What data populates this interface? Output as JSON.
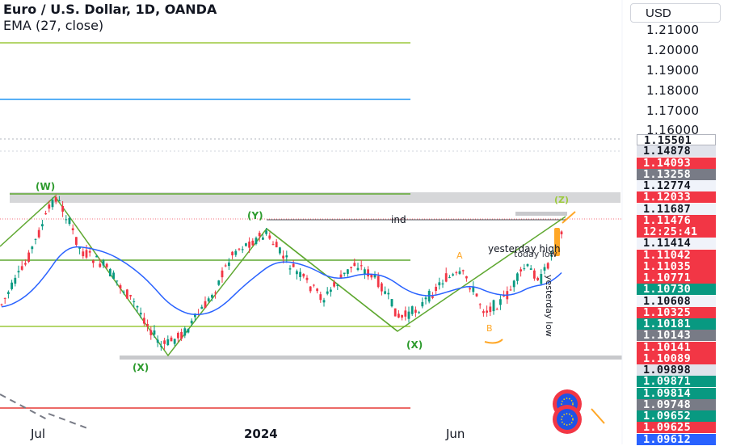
{
  "legend": {
    "title": "Euro / U.S. Dollar, 1D, OANDA",
    "indicator": "EMA (27, close)"
  },
  "currency_button": "USD",
  "price_axis": {
    "labels": [
      "1.21000",
      "1.20000",
      "1.19000",
      "1.18000",
      "1.17000",
      "1.16000"
    ]
  },
  "price_tags": [
    {
      "text": "1.15501",
      "bg": "#ffffff",
      "fg": "#131722",
      "border": "#b2b5be"
    },
    {
      "text": "1.14878",
      "bg": "#e0e3eb",
      "fg": "#131722"
    },
    {
      "text": "1.14093",
      "bg": "#f23645",
      "fg": "#ffffff"
    },
    {
      "text": "1.13258",
      "bg": "#787b86",
      "fg": "#ffffff"
    },
    {
      "text": "1.12774",
      "bg": "#f0f3fa",
      "fg": "#131722"
    },
    {
      "text": "1.12033",
      "bg": "#f23645",
      "fg": "#ffffff"
    },
    {
      "text": "1.11687",
      "bg": "#f0f3fa",
      "fg": "#131722"
    },
    {
      "text": "1.11476",
      "bg": "#f23645",
      "fg": "#ffffff"
    },
    {
      "text": "12:25:41",
      "bg": "#f23645",
      "fg": "#ffffff"
    },
    {
      "text": "1.11414",
      "bg": "#f0f3fa",
      "fg": "#131722"
    },
    {
      "text": "1.11042",
      "bg": "#f23645",
      "fg": "#ffffff"
    },
    {
      "text": "1.11035",
      "bg": "#f23645",
      "fg": "#ffffff"
    },
    {
      "text": "1.10771",
      "bg": "#f23645",
      "fg": "#ffffff"
    },
    {
      "text": "1.10730",
      "bg": "#089981",
      "fg": "#ffffff"
    },
    {
      "text": "1.10608",
      "bg": "#f0f3fa",
      "fg": "#131722"
    },
    {
      "text": "1.10325",
      "bg": "#f23645",
      "fg": "#ffffff"
    },
    {
      "text": "1.10181",
      "bg": "#089981",
      "fg": "#ffffff"
    },
    {
      "text": "1.10143",
      "bg": "#787b86",
      "fg": "#ffffff"
    },
    {
      "text": "1.10141",
      "bg": "#f23645",
      "fg": "#ffffff"
    },
    {
      "text": "1.10089",
      "bg": "#f23645",
      "fg": "#ffffff"
    },
    {
      "text": "1.09898",
      "bg": "#e0e3eb",
      "fg": "#131722"
    },
    {
      "text": "1.09871",
      "bg": "#089981",
      "fg": "#ffffff"
    },
    {
      "text": "1.09814",
      "bg": "#089981",
      "fg": "#ffffff"
    },
    {
      "text": "1.09748",
      "bg": "#787b86",
      "fg": "#ffffff"
    },
    {
      "text": "1.09652",
      "bg": "#089981",
      "fg": "#ffffff"
    },
    {
      "text": "1.09625",
      "bg": "#f23645",
      "fg": "#ffffff"
    },
    {
      "text": "1.09612",
      "bg": "#2962ff",
      "fg": "#ffffff"
    }
  ],
  "time_axis": {
    "labels": [
      "Jul",
      "2024",
      "Jun"
    ]
  },
  "annotations": {
    "wave_w": "(W)",
    "wave_x1": "(X)",
    "wave_y": "(Y)",
    "wave_x2": "(X)",
    "wave_z": "(Z)",
    "label_a": "A",
    "label_b": "B",
    "ind_label": "ind",
    "yesterday_high": "yesterday high",
    "yesterday_low": "yesterday low",
    "today_low": "today low"
  },
  "colors": {
    "up_candle": "#089981",
    "down_candle": "#f23645",
    "ema": "#2962ff",
    "wave_lines": "#5fa831",
    "hline_green": "#9cc93c",
    "hline_blue": "#2196f3",
    "hline_red": "#e53935"
  }
}
